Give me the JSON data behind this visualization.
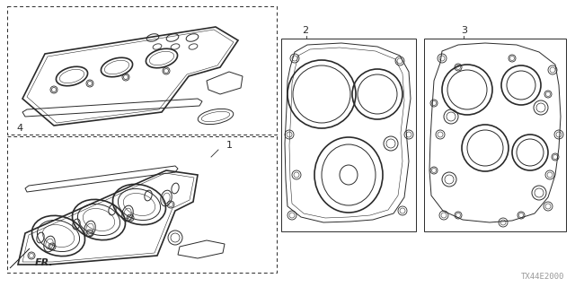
{
  "bg_color": "#ffffff",
  "line_color": "#2a2a2a",
  "label_1": "1",
  "label_2": "2",
  "label_3": "3",
  "label_4": "4",
  "fr_label": "FR.",
  "diagram_id": "TX44E2000",
  "label_fontsize": 8,
  "small_fontsize": 6.5,
  "lw_main": 0.7,
  "lw_thick": 1.2,
  "lw_thin": 0.4
}
